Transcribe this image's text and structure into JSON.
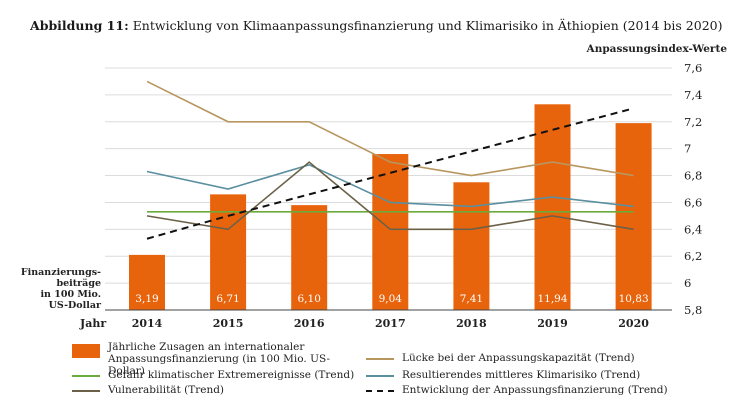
{
  "title": {
    "label": "Abbildung 11:",
    "text": "Entwicklung von Klimaanpassungsfinanzierung und Klimarisiko in Äthiopien (2014 bis 2020)"
  },
  "chart_data": {
    "type": "bar",
    "categories": [
      "2014",
      "2015",
      "2016",
      "2017",
      "2018",
      "2019",
      "2020"
    ],
    "xlabel": "Jahr",
    "ylabel_left": "Finanzierungs-beiträge in 100 Mio. US-Dollar",
    "ylabel_right": "Anpassungsindex-Werte",
    "ylim": [
      5.8,
      7.6
    ],
    "yticks": [
      "5,8",
      "6",
      "6,2",
      "6,4",
      "6,6",
      "6,8",
      "7",
      "7,2",
      "7,4",
      "7,6"
    ],
    "bar_series": {
      "name": "Jährliche Zusagen an internationaler Anpassungsfinanzierung (in 100 Mio. US-Dollar)",
      "color": "#e8640c",
      "labels": [
        "3,19",
        "6,71",
        "6,10",
        "9,04",
        "7,41",
        "11,94",
        "10,83"
      ],
      "values": [
        3.19,
        6.71,
        6.1,
        9.04,
        7.41,
        11.94,
        10.83
      ],
      "index_heights": [
        6.21,
        6.66,
        6.58,
        6.96,
        6.75,
        7.33,
        7.19
      ]
    },
    "series": [
      {
        "name": "Lücke bei der Anpassungskapazität (Trend)",
        "color": "#b89660",
        "style": "solid",
        "values": [
          7.5,
          7.2,
          7.2,
          6.9,
          6.8,
          6.9,
          6.8
        ]
      },
      {
        "name": "Gefahr klimatischer Extremereignisse (Trend)",
        "color": "#6aab3c",
        "style": "solid",
        "values": [
          6.53,
          6.53,
          6.53,
          6.53,
          6.53,
          6.53,
          6.53
        ]
      },
      {
        "name": "Resultierendes mittleres Klimarisiko (Trend)",
        "color": "#5a8fa0",
        "style": "solid",
        "values": [
          6.83,
          6.7,
          6.88,
          6.6,
          6.57,
          6.64,
          6.57
        ]
      },
      {
        "name": "Vulnerabilität (Trend)",
        "color": "#6b6148",
        "style": "solid",
        "values": [
          6.5,
          6.4,
          6.9,
          6.4,
          6.4,
          6.5,
          6.4
        ]
      },
      {
        "name": "Entwicklung der Anpassungsfinanzierung (Trend)",
        "color": "#111111",
        "style": "dashed",
        "values": [
          6.33,
          6.5,
          6.66,
          6.82,
          6.98,
          7.14,
          7.3
        ]
      }
    ]
  }
}
